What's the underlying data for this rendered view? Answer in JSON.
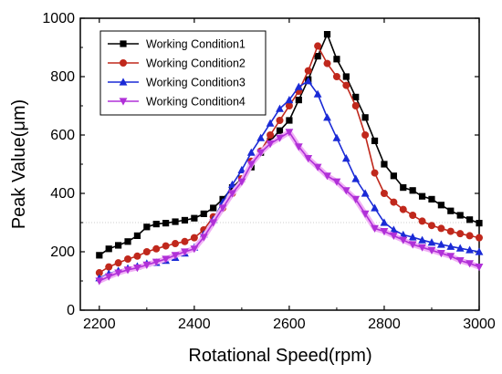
{
  "chart_data": {
    "type": "line",
    "xlabel": "Rotational Speed(rpm)",
    "ylabel": "Peak Value(μm)",
    "xlim": [
      2160,
      3000
    ],
    "ylim": [
      0,
      1000
    ],
    "xticks": [
      "2200",
      "2400",
      "2600",
      "2800",
      "3000"
    ],
    "yticks": [
      "0",
      "200",
      "400",
      "600",
      "800",
      "1000"
    ],
    "xtick_values": [
      2200,
      2400,
      2600,
      2800,
      3000
    ],
    "ytick_values": [
      0,
      200,
      400,
      600,
      800,
      1000
    ],
    "legend_position": "top-left",
    "grid": false,
    "series": [
      {
        "name": "Working Condition1",
        "color": "#000000",
        "marker": "square",
        "x": [
          2200,
          2220,
          2240,
          2260,
          2280,
          2300,
          2320,
          2340,
          2360,
          2380,
          2400,
          2420,
          2440,
          2460,
          2480,
          2500,
          2520,
          2540,
          2560,
          2580,
          2600,
          2620,
          2640,
          2660,
          2680,
          2700,
          2720,
          2740,
          2760,
          2780,
          2800,
          2820,
          2840,
          2860,
          2880,
          2900,
          2920,
          2940,
          2960,
          2980,
          3000
        ],
        "y": [
          188,
          210,
          222,
          235,
          255,
          285,
          295,
          298,
          303,
          308,
          315,
          330,
          350,
          380,
          420,
          450,
          490,
          540,
          580,
          615,
          650,
          720,
          790,
          870,
          945,
          860,
          800,
          730,
          660,
          580,
          500,
          460,
          420,
          410,
          390,
          380,
          360,
          340,
          325,
          310,
          298
        ]
      },
      {
        "name": "Working Condition2",
        "color": "#c0281c",
        "marker": "circle",
        "x": [
          2200,
          2220,
          2240,
          2260,
          2280,
          2300,
          2320,
          2340,
          2360,
          2380,
          2400,
          2420,
          2440,
          2460,
          2480,
          2500,
          2520,
          2540,
          2560,
          2580,
          2600,
          2620,
          2640,
          2660,
          2680,
          2700,
          2720,
          2740,
          2760,
          2780,
          2800,
          2820,
          2840,
          2860,
          2880,
          2900,
          2920,
          2940,
          2960,
          2980,
          3000
        ],
        "y": [
          128,
          148,
          162,
          175,
          185,
          200,
          210,
          220,
          228,
          235,
          248,
          275,
          320,
          350,
          400,
          450,
          510,
          545,
          600,
          650,
          700,
          750,
          820,
          905,
          845,
          800,
          770,
          700,
          600,
          470,
          400,
          370,
          345,
          325,
          305,
          290,
          280,
          270,
          262,
          255,
          248
        ]
      },
      {
        "name": "Working Condition3",
        "color": "#1a2ad6",
        "marker": "triangle-up",
        "x": [
          2200,
          2220,
          2240,
          2260,
          2280,
          2300,
          2320,
          2340,
          2360,
          2380,
          2400,
          2420,
          2440,
          2460,
          2480,
          2500,
          2520,
          2540,
          2560,
          2580,
          2600,
          2620,
          2640,
          2660,
          2680,
          2700,
          2720,
          2740,
          2760,
          2780,
          2800,
          2820,
          2840,
          2860,
          2880,
          2900,
          2920,
          2940,
          2960,
          2980,
          3000
        ],
        "y": [
          110,
          125,
          135,
          143,
          150,
          160,
          163,
          170,
          180,
          195,
          215,
          260,
          310,
          370,
          430,
          480,
          540,
          590,
          640,
          690,
          720,
          765,
          785,
          740,
          660,
          590,
          520,
          450,
          400,
          350,
          300,
          275,
          258,
          250,
          240,
          232,
          225,
          218,
          212,
          206,
          200
        ]
      },
      {
        "name": "Working Condition4",
        "color": "#b030d8",
        "marker": "triangle-down",
        "x": [
          2200,
          2220,
          2240,
          2260,
          2280,
          2300,
          2320,
          2340,
          2360,
          2380,
          2400,
          2420,
          2440,
          2460,
          2480,
          2500,
          2520,
          2540,
          2560,
          2580,
          2600,
          2620,
          2640,
          2660,
          2680,
          2700,
          2720,
          2740,
          2760,
          2780,
          2800,
          2820,
          2840,
          2860,
          2880,
          2900,
          2920,
          2940,
          2960,
          2980,
          3000
        ],
        "y": [
          100,
          115,
          128,
          138,
          145,
          155,
          165,
          175,
          188,
          200,
          210,
          250,
          300,
          350,
          400,
          440,
          500,
          540,
          570,
          590,
          610,
          560,
          520,
          490,
          460,
          440,
          410,
          380,
          330,
          280,
          270,
          255,
          240,
          225,
          215,
          205,
          195,
          185,
          170,
          160,
          148
        ]
      }
    ]
  }
}
